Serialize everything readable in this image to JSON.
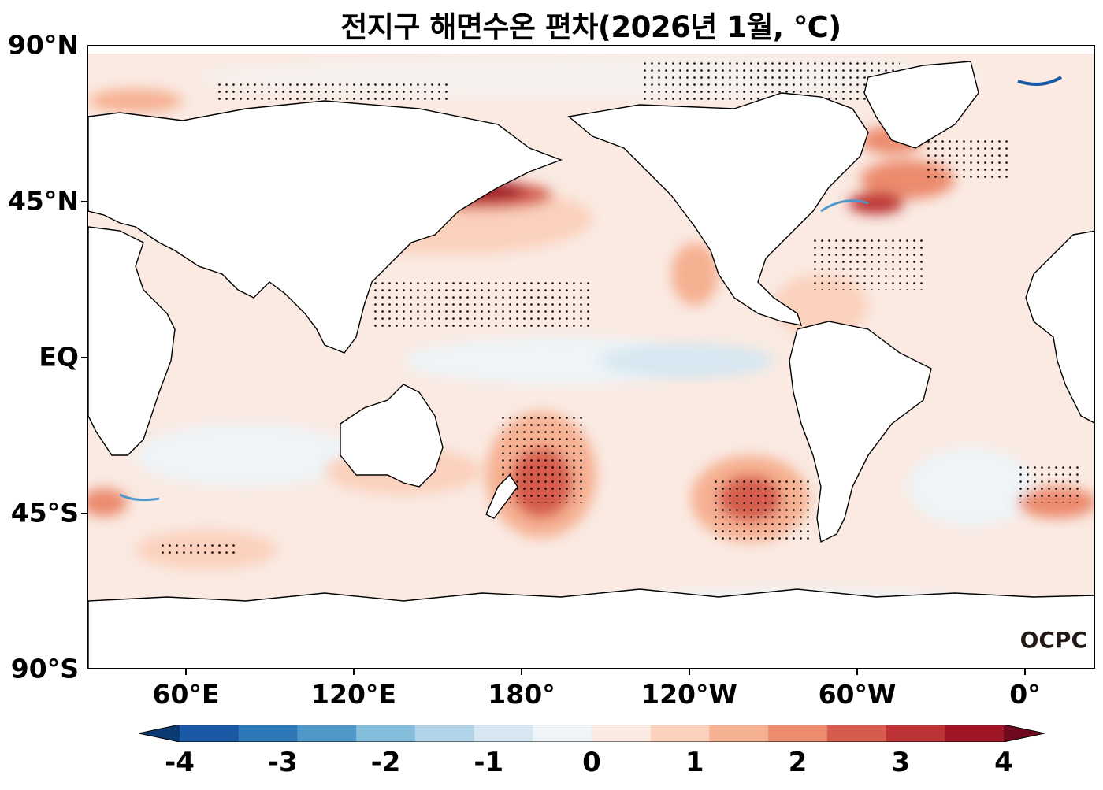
{
  "title": "전지구 해면수온 편차(2026년 1월, ℃)",
  "lat_labels": [
    "90°N",
    "45°N",
    "EQ",
    "45°S",
    "90°S"
  ],
  "lon_labels": [
    "60°E",
    "120°E",
    "180°",
    "120°W",
    "60°W",
    "0°"
  ],
  "colorbar": {
    "ticks": [
      "-4",
      "-3",
      "-2",
      "-1",
      "0",
      "1",
      "2",
      "3",
      "4"
    ],
    "colors": [
      "#0b3a73",
      "#1a5aa5",
      "#2f78b8",
      "#4f97c9",
      "#84bcdc",
      "#b0d3e8",
      "#d6e7f1",
      "#eef4f8",
      "#faeae2",
      "#fbd1bd",
      "#f6b092",
      "#ec8b6e",
      "#d65d4e",
      "#be3436",
      "#9f1727",
      "#6f0a1e"
    ]
  },
  "logo": "OCPC",
  "legend_colors": {
    "land": "#ffffff",
    "coast": "#000000",
    "dots": "#000000"
  }
}
